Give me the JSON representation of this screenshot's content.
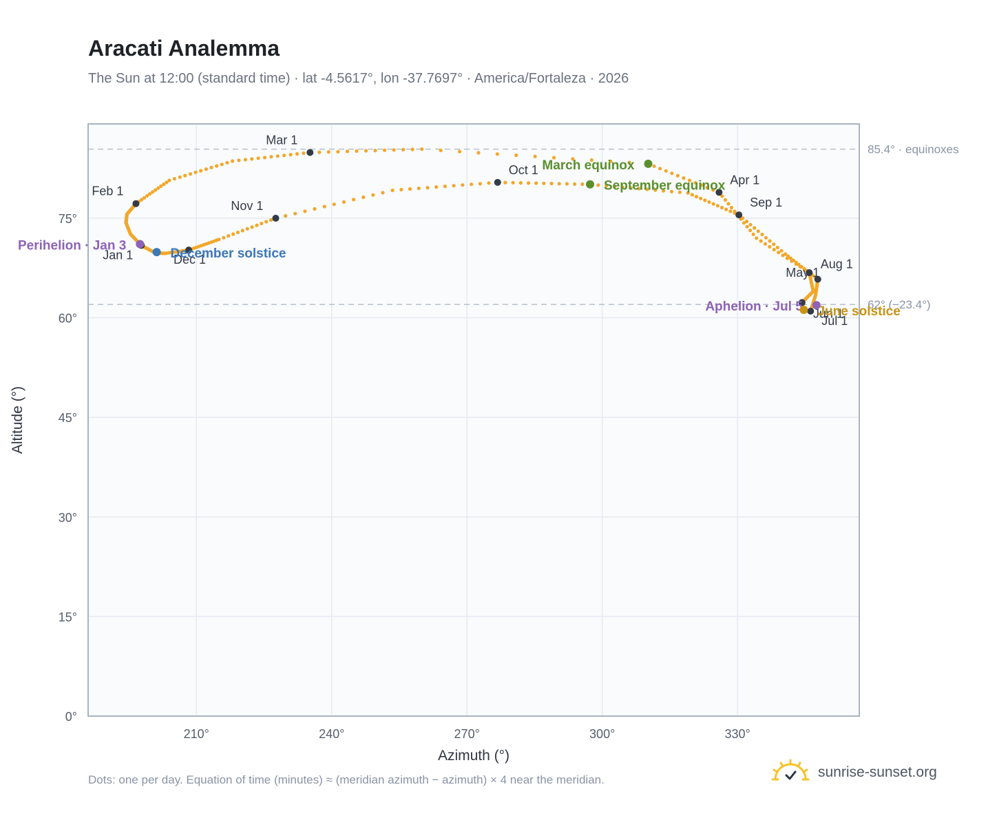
{
  "title": "Aracati Analemma",
  "subtitle": "The Sun at 12:00 (standard time) · lat -4.5617°, lon -37.7697° · America/Fortaleza · 2026",
  "footnote": "Dots: one per day. Equation of time (minutes) ≈ (meridian azimuth − azimuth) × 4 near the meridian.",
  "brand": {
    "name": "sunrise-sunset.org",
    "icon": "sun-logo-icon"
  },
  "colors": {
    "curve": "#f2a72a",
    "month_marker": "#343a46",
    "perihelion": "#8e63b7",
    "december_solstice": "#3b78b8",
    "equinox": "#5a8f2e",
    "june_solstice": "#c99315",
    "reference_line": "#b8c1cc",
    "grid": "#e6eaf0",
    "plot_bg": "#f9fbfd"
  },
  "chart_data": {
    "type": "scatter",
    "title": "Aracati Analemma",
    "subtitle": "The Sun at 12:00 (standard time) · lat -4.5617°, lon -37.7697° · America/Fortaleza · 2026",
    "xlabel": "Azimuth (°)",
    "ylabel": "Altitude (°)",
    "xlim": [
      186,
      357
    ],
    "ylim": [
      0,
      89.2
    ],
    "xticks": [
      210,
      240,
      270,
      300,
      330
    ],
    "xtick_labels": [
      "210°",
      "240°",
      "270°",
      "300°",
      "330°"
    ],
    "yticks": [
      0,
      15,
      30,
      45,
      60,
      75
    ],
    "ytick_labels": [
      "0°",
      "15°",
      "30°",
      "45°",
      "60°",
      "75°"
    ],
    "grid": true,
    "series": [
      {
        "anchors": [
          [
            "Jan 1",
            197.8,
            70.9
          ],
          [
            "Jan 8",
            195.4,
            72.6
          ],
          [
            "Jan 15",
            194.4,
            74.3
          ],
          [
            "Jan 22",
            194.6,
            75.6
          ],
          [
            "Feb 1",
            196.6,
            77.2
          ],
          [
            "Feb 10",
            204.0,
            80.7
          ],
          [
            "Feb 20",
            218.0,
            83.6
          ],
          [
            "Mar 1",
            235.2,
            84.9
          ],
          [
            "Mar 10",
            260.0,
            85.4
          ],
          [
            "Mar 20",
            310.2,
            83.2
          ],
          [
            "Apr 1",
            325.9,
            78.9
          ],
          [
            "Apr 15",
            334.2,
            72.0
          ],
          [
            "May 1",
            345.9,
            66.8
          ],
          [
            "May 15",
            346.8,
            64.0
          ],
          [
            "Jun 1",
            344.3,
            62.3
          ],
          [
            "Jun 21",
            344.7,
            61.2
          ],
          [
            "Jul 1",
            346.2,
            61.0
          ],
          [
            "Jul 15",
            347.3,
            63.4
          ],
          [
            "Aug 1",
            347.8,
            65.8
          ],
          [
            "Aug 15",
            340.6,
            69.6
          ],
          [
            "Sep 1",
            330.3,
            75.5
          ],
          [
            "Sep 12",
            319.0,
            78.8
          ],
          [
            "Sep 23",
            297.3,
            80.1
          ],
          [
            "Oct 1",
            276.8,
            80.4
          ],
          [
            "Oct 15",
            253.5,
            79.2
          ],
          [
            "Nov 1",
            227.6,
            75.0
          ],
          [
            "Nov 15",
            215.0,
            71.8
          ],
          [
            "Dec 1",
            208.3,
            70.2
          ],
          [
            "Dec 10",
            203.0,
            69.7
          ],
          [
            "Dec 21",
            200.8,
            69.8
          ],
          [
            "Jan 1",
            197.8,
            70.9
          ]
        ]
      }
    ],
    "month_markers": [
      {
        "label": "Jan 1",
        "azimuth": 197.8,
        "altitude": 70.9
      },
      {
        "label": "Feb 1",
        "azimuth": 196.6,
        "altitude": 77.2
      },
      {
        "label": "Mar 1",
        "azimuth": 235.2,
        "altitude": 84.9
      },
      {
        "label": "Apr 1",
        "azimuth": 325.9,
        "altitude": 78.9
      },
      {
        "label": "May 1",
        "azimuth": 345.9,
        "altitude": 66.8
      },
      {
        "label": "Jun 1",
        "azimuth": 344.3,
        "altitude": 62.3
      },
      {
        "label": "Jul 1",
        "azimuth": 346.2,
        "altitude": 61.0
      },
      {
        "label": "Aug 1",
        "azimuth": 347.8,
        "altitude": 65.8
      },
      {
        "label": "Sep 1",
        "azimuth": 330.3,
        "altitude": 75.5
      },
      {
        "label": "Oct 1",
        "azimuth": 276.8,
        "altitude": 80.4
      },
      {
        "label": "Nov 1",
        "azimuth": 227.6,
        "altitude": 75.0
      },
      {
        "label": "Dec 1",
        "azimuth": 208.3,
        "altitude": 70.2
      }
    ],
    "events": [
      {
        "label": "Perihelion · Jan 3",
        "azimuth": 197.5,
        "altitude": 71.1,
        "kind": "perihelion"
      },
      {
        "label": "December solstice",
        "azimuth": 201.2,
        "altitude": 69.9,
        "kind": "december_solstice"
      },
      {
        "label": "March equinox",
        "azimuth": 310.2,
        "altitude": 83.2,
        "kind": "equinox"
      },
      {
        "label": "September equinox",
        "azimuth": 297.3,
        "altitude": 80.1,
        "kind": "equinox"
      },
      {
        "label": "Aphelion · Jul 5",
        "azimuth": 347.5,
        "altitude": 61.9,
        "kind": "perihelion"
      },
      {
        "label": "June solstice",
        "azimuth": 344.7,
        "altitude": 61.2,
        "kind": "june_solstice"
      }
    ],
    "reference_lines": [
      {
        "label": "85.4° · equinoxes",
        "altitude": 85.4
      },
      {
        "label": "62° (−23.4°)",
        "altitude": 62.0
      }
    ]
  }
}
